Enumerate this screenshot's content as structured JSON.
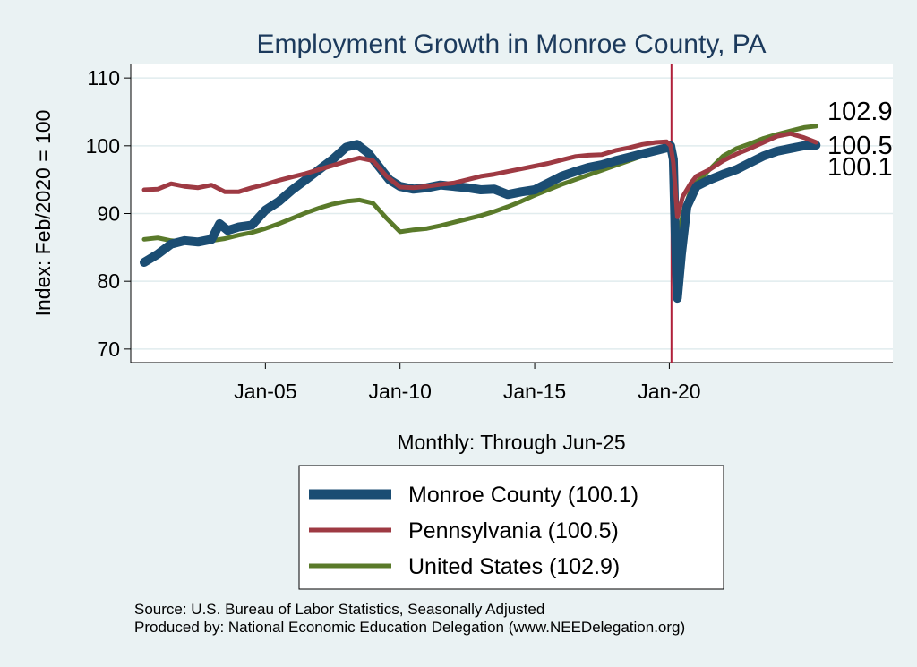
{
  "chart_data": {
    "type": "line",
    "title": "Employment Growth in Monroe  County, PA",
    "xlabel": "Monthly: Through Jun-25",
    "ylabel": "Index: Feb/2020 = 100",
    "ylim": [
      68,
      112
    ],
    "yticks": [
      70,
      80,
      90,
      100,
      110
    ],
    "xlim": [
      2000.0,
      2028.3
    ],
    "xticks": [
      {
        "value": 2005.0,
        "label": "Jan-05"
      },
      {
        "value": 2010.0,
        "label": "Jan-10"
      },
      {
        "value": 2015.0,
        "label": "Jan-15"
      },
      {
        "value": 2020.0,
        "label": "Jan-20"
      }
    ],
    "reference_line": {
      "x": 2020.08
    },
    "series": [
      {
        "name": "Monroe  County (100.1)",
        "legend": "Monroe  County (100.1)",
        "end_label": "100.1",
        "color": "#1b4d73",
        "points": [
          [
            2000.5,
            82.8
          ],
          [
            2001.0,
            84.0
          ],
          [
            2001.5,
            85.5
          ],
          [
            2002.0,
            86.0
          ],
          [
            2002.5,
            85.8
          ],
          [
            2003.0,
            86.2
          ],
          [
            2003.3,
            88.5
          ],
          [
            2003.6,
            87.5
          ],
          [
            2004.0,
            88.0
          ],
          [
            2004.5,
            88.3
          ],
          [
            2005.0,
            90.5
          ],
          [
            2005.5,
            91.8
          ],
          [
            2006.0,
            93.5
          ],
          [
            2006.5,
            95.0
          ],
          [
            2007.0,
            96.5
          ],
          [
            2007.5,
            98.0
          ],
          [
            2008.0,
            99.8
          ],
          [
            2008.4,
            100.2
          ],
          [
            2008.8,
            99.0
          ],
          [
            2009.2,
            97.0
          ],
          [
            2009.6,
            95.0
          ],
          [
            2010.0,
            94.0
          ],
          [
            2010.5,
            93.6
          ],
          [
            2011.0,
            93.8
          ],
          [
            2011.5,
            94.2
          ],
          [
            2012.0,
            94.0
          ],
          [
            2012.5,
            93.8
          ],
          [
            2013.0,
            93.5
          ],
          [
            2013.5,
            93.6
          ],
          [
            2014.0,
            92.8
          ],
          [
            2014.5,
            93.2
          ],
          [
            2015.0,
            93.5
          ],
          [
            2015.5,
            94.5
          ],
          [
            2016.0,
            95.5
          ],
          [
            2016.5,
            96.2
          ],
          [
            2017.0,
            96.8
          ],
          [
            2017.5,
            97.2
          ],
          [
            2018.0,
            97.8
          ],
          [
            2018.5,
            98.3
          ],
          [
            2019.0,
            98.8
          ],
          [
            2019.5,
            99.3
          ],
          [
            2019.9,
            99.7
          ],
          [
            2020.05,
            100.0
          ],
          [
            2020.15,
            98.0
          ],
          [
            2020.22,
            87.0
          ],
          [
            2020.3,
            77.5
          ],
          [
            2020.45,
            84.0
          ],
          [
            2020.65,
            91.0
          ],
          [
            2021.0,
            94.0
          ],
          [
            2021.5,
            95.0
          ],
          [
            2022.0,
            95.8
          ],
          [
            2022.5,
            96.5
          ],
          [
            2023.0,
            97.5
          ],
          [
            2023.5,
            98.5
          ],
          [
            2024.0,
            99.2
          ],
          [
            2024.5,
            99.6
          ],
          [
            2025.0,
            100.0
          ],
          [
            2025.45,
            100.1
          ]
        ]
      },
      {
        "name": "Pennsylvania (100.5)",
        "legend": "Pennsylvania (100.5)",
        "end_label": "100.5",
        "color": "#9e3a43",
        "points": [
          [
            2000.5,
            93.5
          ],
          [
            2001.0,
            93.6
          ],
          [
            2001.5,
            94.4
          ],
          [
            2002.0,
            94.0
          ],
          [
            2002.5,
            93.8
          ],
          [
            2003.0,
            94.2
          ],
          [
            2003.5,
            93.2
          ],
          [
            2004.0,
            93.2
          ],
          [
            2004.5,
            93.8
          ],
          [
            2005.0,
            94.3
          ],
          [
            2005.5,
            94.9
          ],
          [
            2006.0,
            95.4
          ],
          [
            2006.5,
            95.9
          ],
          [
            2007.0,
            96.5
          ],
          [
            2007.5,
            97.1
          ],
          [
            2008.0,
            97.7
          ],
          [
            2008.5,
            98.2
          ],
          [
            2009.0,
            97.8
          ],
          [
            2009.5,
            95.5
          ],
          [
            2010.0,
            93.9
          ],
          [
            2010.5,
            93.8
          ],
          [
            2011.0,
            94.0
          ],
          [
            2011.5,
            94.3
          ],
          [
            2012.0,
            94.5
          ],
          [
            2012.5,
            95.0
          ],
          [
            2013.0,
            95.5
          ],
          [
            2013.5,
            95.8
          ],
          [
            2014.0,
            96.2
          ],
          [
            2014.5,
            96.6
          ],
          [
            2015.0,
            97.0
          ],
          [
            2015.5,
            97.4
          ],
          [
            2016.0,
            97.9
          ],
          [
            2016.5,
            98.4
          ],
          [
            2017.0,
            98.6
          ],
          [
            2017.5,
            98.7
          ],
          [
            2018.0,
            99.3
          ],
          [
            2018.5,
            99.7
          ],
          [
            2019.0,
            100.2
          ],
          [
            2019.5,
            100.5
          ],
          [
            2019.9,
            100.6
          ],
          [
            2020.05,
            100.0
          ],
          [
            2020.15,
            97.5
          ],
          [
            2020.3,
            89.5
          ],
          [
            2020.5,
            92.5
          ],
          [
            2020.8,
            94.5
          ],
          [
            2021.0,
            95.5
          ],
          [
            2021.5,
            96.5
          ],
          [
            2022.0,
            97.8
          ],
          [
            2022.5,
            98.8
          ],
          [
            2023.0,
            99.6
          ],
          [
            2023.5,
            100.5
          ],
          [
            2024.0,
            101.4
          ],
          [
            2024.5,
            101.8
          ],
          [
            2025.0,
            101.2
          ],
          [
            2025.45,
            100.5
          ]
        ]
      },
      {
        "name": "United States (102.9)",
        "legend": "United States (102.9)",
        "end_label": "102.9",
        "color": "#5a7a2a",
        "points": [
          [
            2000.5,
            86.2
          ],
          [
            2001.0,
            86.4
          ],
          [
            2001.5,
            86.0
          ],
          [
            2002.0,
            85.8
          ],
          [
            2002.5,
            85.9
          ],
          [
            2003.0,
            86.0
          ],
          [
            2003.5,
            86.3
          ],
          [
            2004.0,
            86.8
          ],
          [
            2004.5,
            87.2
          ],
          [
            2005.0,
            87.8
          ],
          [
            2005.5,
            88.5
          ],
          [
            2006.0,
            89.3
          ],
          [
            2006.5,
            90.1
          ],
          [
            2007.0,
            90.8
          ],
          [
            2007.5,
            91.4
          ],
          [
            2008.0,
            91.8
          ],
          [
            2008.5,
            92.0
          ],
          [
            2009.0,
            91.5
          ],
          [
            2009.5,
            89.3
          ],
          [
            2010.0,
            87.3
          ],
          [
            2010.5,
            87.6
          ],
          [
            2011.0,
            87.8
          ],
          [
            2011.5,
            88.2
          ],
          [
            2012.0,
            88.7
          ],
          [
            2012.5,
            89.2
          ],
          [
            2013.0,
            89.7
          ],
          [
            2013.5,
            90.3
          ],
          [
            2014.0,
            91.0
          ],
          [
            2014.5,
            91.8
          ],
          [
            2015.0,
            92.7
          ],
          [
            2015.5,
            93.5
          ],
          [
            2016.0,
            94.3
          ],
          [
            2016.5,
            95.0
          ],
          [
            2017.0,
            95.7
          ],
          [
            2017.5,
            96.4
          ],
          [
            2018.0,
            97.1
          ],
          [
            2018.5,
            97.8
          ],
          [
            2019.0,
            98.5
          ],
          [
            2019.5,
            99.1
          ],
          [
            2019.9,
            99.6
          ],
          [
            2020.05,
            100.0
          ],
          [
            2020.15,
            96.5
          ],
          [
            2020.28,
            84.5
          ],
          [
            2020.5,
            90.0
          ],
          [
            2020.8,
            93.5
          ],
          [
            2021.0,
            94.5
          ],
          [
            2021.5,
            96.5
          ],
          [
            2022.0,
            98.5
          ],
          [
            2022.5,
            99.6
          ],
          [
            2023.0,
            100.3
          ],
          [
            2023.5,
            101.1
          ],
          [
            2024.0,
            101.7
          ],
          [
            2024.5,
            102.2
          ],
          [
            2025.0,
            102.7
          ],
          [
            2025.45,
            102.9
          ]
        ]
      }
    ]
  },
  "source_line": "Source: U.S. Bureau of Labor Statistics, Seasonally Adjusted",
  "produced_line": "Produced by: National Economic Education Delegation (www.NEEDelegation.org)"
}
